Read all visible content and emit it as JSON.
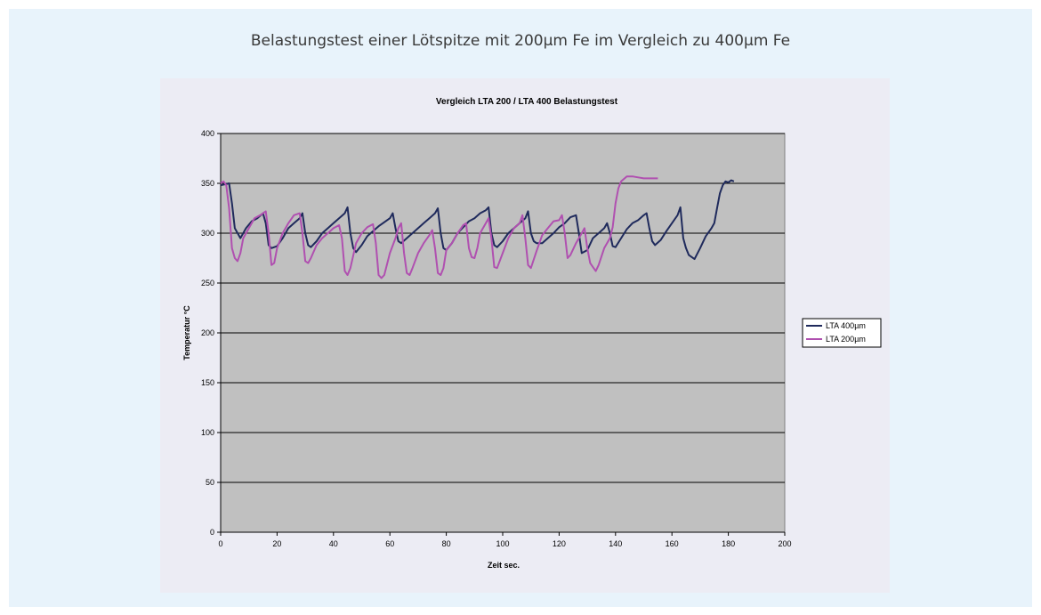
{
  "page": {
    "title": "Belastungstest einer Lötspitze mit 200µm Fe im Vergleich zu 400µm Fe"
  },
  "colors": {
    "card_bg": "#e8f3fb",
    "chart_bg": "#ececf4",
    "plot_bg": "#c0c0c0",
    "series_400": "#1f2a5c",
    "series_200": "#b050b0"
  },
  "chart_data": {
    "type": "line",
    "title": "Vergleich LTA 200 / LTA 400 Belastungstest",
    "xlabel": "Zeit sec.",
    "ylabel": "Temperatur °C",
    "xlim": [
      0,
      200
    ],
    "ylim": [
      0,
      400
    ],
    "xticks": [
      0,
      20,
      40,
      60,
      80,
      100,
      120,
      140,
      160,
      180,
      200
    ],
    "yticks": [
      0,
      50,
      100,
      150,
      200,
      250,
      300,
      350,
      400
    ],
    "grid": "horizontal",
    "legend": "right",
    "series": [
      {
        "name": "LTA 400µm",
        "color": "#1f2a5c",
        "points": [
          [
            0,
            348
          ],
          [
            3,
            350
          ],
          [
            4,
            330
          ],
          [
            5,
            305
          ],
          [
            7,
            295
          ],
          [
            9,
            305
          ],
          [
            11,
            312
          ],
          [
            13,
            315
          ],
          [
            15,
            320
          ],
          [
            16,
            310
          ],
          [
            17,
            288
          ],
          [
            18,
            285
          ],
          [
            20,
            287
          ],
          [
            22,
            295
          ],
          [
            24,
            305
          ],
          [
            26,
            310
          ],
          [
            28,
            315
          ],
          [
            29,
            320
          ],
          [
            30,
            300
          ],
          [
            31,
            288
          ],
          [
            32,
            286
          ],
          [
            34,
            292
          ],
          [
            36,
            300
          ],
          [
            38,
            305
          ],
          [
            40,
            310
          ],
          [
            42,
            315
          ],
          [
            44,
            320
          ],
          [
            45,
            326
          ],
          [
            46,
            300
          ],
          [
            47,
            285
          ],
          [
            48,
            281
          ],
          [
            50,
            288
          ],
          [
            52,
            297
          ],
          [
            54,
            302
          ],
          [
            56,
            307
          ],
          [
            58,
            311
          ],
          [
            60,
            315
          ],
          [
            61,
            320
          ],
          [
            62,
            305
          ],
          [
            63,
            292
          ],
          [
            64,
            290
          ],
          [
            66,
            295
          ],
          [
            68,
            300
          ],
          [
            70,
            305
          ],
          [
            72,
            310
          ],
          [
            74,
            315
          ],
          [
            76,
            320
          ],
          [
            77,
            325
          ],
          [
            78,
            300
          ],
          [
            79,
            285
          ],
          [
            80,
            283
          ],
          [
            82,
            290
          ],
          [
            84,
            300
          ],
          [
            86,
            306
          ],
          [
            88,
            312
          ],
          [
            90,
            315
          ],
          [
            92,
            320
          ],
          [
            94,
            323
          ],
          [
            95,
            326
          ],
          [
            96,
            300
          ],
          [
            97,
            288
          ],
          [
            98,
            286
          ],
          [
            100,
            292
          ],
          [
            102,
            300
          ],
          [
            104,
            305
          ],
          [
            106,
            310
          ],
          [
            108,
            315
          ],
          [
            109,
            322
          ],
          [
            110,
            300
          ],
          [
            111,
            292
          ],
          [
            112,
            290
          ],
          [
            114,
            290
          ],
          [
            116,
            295
          ],
          [
            118,
            300
          ],
          [
            120,
            306
          ],
          [
            122,
            310
          ],
          [
            124,
            316
          ],
          [
            126,
            318
          ],
          [
            127,
            300
          ],
          [
            128,
            280
          ],
          [
            130,
            283
          ],
          [
            132,
            295
          ],
          [
            134,
            300
          ],
          [
            136,
            305
          ],
          [
            137,
            310
          ],
          [
            138,
            300
          ],
          [
            139,
            287
          ],
          [
            140,
            286
          ],
          [
            142,
            295
          ],
          [
            144,
            304
          ],
          [
            146,
            310
          ],
          [
            148,
            313
          ],
          [
            150,
            318
          ],
          [
            151,
            320
          ],
          [
            152,
            305
          ],
          [
            153,
            292
          ],
          [
            154,
            288
          ],
          [
            156,
            293
          ],
          [
            158,
            302
          ],
          [
            160,
            310
          ],
          [
            162,
            318
          ],
          [
            163,
            326
          ],
          [
            164,
            295
          ],
          [
            165,
            285
          ],
          [
            166,
            278
          ],
          [
            168,
            274
          ],
          [
            170,
            285
          ],
          [
            172,
            297
          ],
          [
            174,
            305
          ],
          [
            175,
            310
          ],
          [
            176,
            325
          ],
          [
            177,
            340
          ],
          [
            178,
            348
          ],
          [
            179,
            352
          ],
          [
            180,
            351
          ],
          [
            181,
            353
          ],
          [
            182,
            352
          ]
        ]
      },
      {
        "name": "LTA 200µm",
        "color": "#b050b0",
        "points": [
          [
            0,
            350
          ],
          [
            1,
            352
          ],
          [
            2,
            348
          ],
          [
            3,
            325
          ],
          [
            4,
            285
          ],
          [
            5,
            275
          ],
          [
            6,
            272
          ],
          [
            7,
            280
          ],
          [
            8,
            295
          ],
          [
            10,
            305
          ],
          [
            12,
            315
          ],
          [
            14,
            318
          ],
          [
            16,
            322
          ],
          [
            17,
            300
          ],
          [
            18,
            268
          ],
          [
            19,
            270
          ],
          [
            20,
            285
          ],
          [
            22,
            300
          ],
          [
            24,
            310
          ],
          [
            26,
            318
          ],
          [
            28,
            320
          ],
          [
            29,
            300
          ],
          [
            30,
            272
          ],
          [
            31,
            270
          ],
          [
            32,
            275
          ],
          [
            34,
            288
          ],
          [
            36,
            295
          ],
          [
            38,
            300
          ],
          [
            40,
            305
          ],
          [
            42,
            308
          ],
          [
            43,
            295
          ],
          [
            44,
            262
          ],
          [
            45,
            258
          ],
          [
            46,
            265
          ],
          [
            48,
            290
          ],
          [
            50,
            300
          ],
          [
            52,
            306
          ],
          [
            54,
            309
          ],
          [
            55,
            290
          ],
          [
            56,
            258
          ],
          [
            57,
            255
          ],
          [
            58,
            258
          ],
          [
            60,
            280
          ],
          [
            62,
            295
          ],
          [
            63,
            305
          ],
          [
            64,
            310
          ],
          [
            65,
            280
          ],
          [
            66,
            260
          ],
          [
            67,
            258
          ],
          [
            68,
            265
          ],
          [
            70,
            280
          ],
          [
            72,
            290
          ],
          [
            74,
            298
          ],
          [
            75,
            303
          ],
          [
            76,
            285
          ],
          [
            77,
            260
          ],
          [
            78,
            258
          ],
          [
            79,
            265
          ],
          [
            80,
            283
          ],
          [
            82,
            290
          ],
          [
            84,
            300
          ],
          [
            86,
            308
          ],
          [
            87,
            310
          ],
          [
            88,
            285
          ],
          [
            89,
            276
          ],
          [
            90,
            275
          ],
          [
            91,
            285
          ],
          [
            92,
            300
          ],
          [
            94,
            310
          ],
          [
            95,
            315
          ],
          [
            96,
            295
          ],
          [
            97,
            266
          ],
          [
            98,
            265
          ],
          [
            100,
            280
          ],
          [
            102,
            295
          ],
          [
            104,
            305
          ],
          [
            106,
            310
          ],
          [
            107,
            318
          ],
          [
            108,
            295
          ],
          [
            109,
            268
          ],
          [
            110,
            265
          ],
          [
            112,
            282
          ],
          [
            114,
            298
          ],
          [
            116,
            305
          ],
          [
            118,
            312
          ],
          [
            120,
            313
          ],
          [
            121,
            318
          ],
          [
            122,
            300
          ],
          [
            123,
            275
          ],
          [
            124,
            278
          ],
          [
            126,
            290
          ],
          [
            128,
            300
          ],
          [
            129,
            305
          ],
          [
            130,
            285
          ],
          [
            131,
            270
          ],
          [
            132,
            266
          ],
          [
            133,
            262
          ],
          [
            134,
            268
          ],
          [
            136,
            285
          ],
          [
            138,
            295
          ],
          [
            139,
            306
          ],
          [
            140,
            330
          ],
          [
            141,
            345
          ],
          [
            142,
            352
          ],
          [
            144,
            357
          ],
          [
            146,
            357
          ],
          [
            148,
            356
          ],
          [
            150,
            355
          ],
          [
            152,
            355
          ],
          [
            154,
            355
          ],
          [
            155,
            355
          ]
        ]
      }
    ]
  }
}
